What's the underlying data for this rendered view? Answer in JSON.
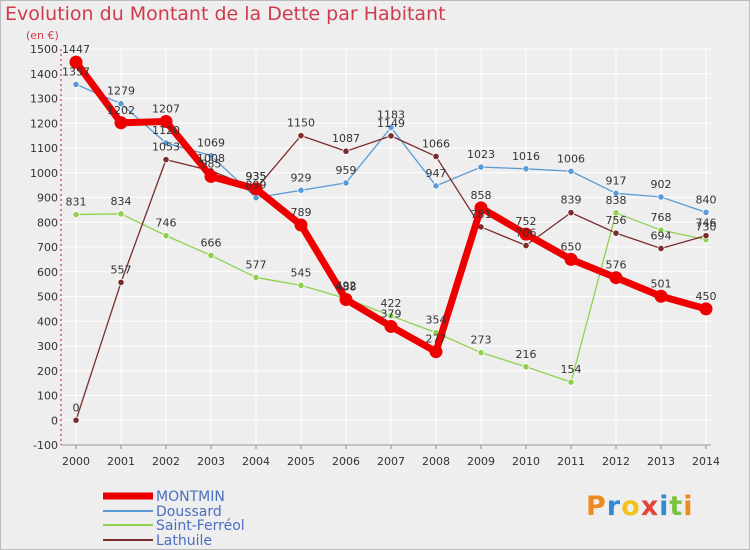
{
  "title": "Evolution du Montant de la Dette par Habitant",
  "subtitle": "(en €)",
  "logo": "Proxiti",
  "chart_data": {
    "type": "line",
    "title": "Evolution du Montant de la Dette par Habitant",
    "subtitle": "(en €)",
    "x": [
      2000,
      2001,
      2002,
      2003,
      2004,
      2005,
      2006,
      2007,
      2008,
      2009,
      2010,
      2011,
      2012,
      2013,
      2014
    ],
    "ylim": [
      -100,
      1500
    ],
    "yticks": [
      -100,
      0,
      100,
      200,
      300,
      400,
      500,
      600,
      700,
      800,
      900,
      1000,
      1100,
      1200,
      1300,
      1400,
      1500
    ],
    "grid": true,
    "legend_position": "bottom-left",
    "series": [
      {
        "name": "MONTMIN",
        "color": "#ee0000",
        "values": [
          1447,
          1202,
          1207,
          985,
          935,
          789,
          488,
          379,
          277,
          858,
          752,
          650,
          576,
          501,
          450
        ]
      },
      {
        "name": "Doussard",
        "color": "#5b9bd5",
        "values": [
          1357,
          1279,
          1120,
          1069,
          899,
          929,
          959,
          1183,
          947,
          1023,
          1016,
          1006,
          917,
          902,
          840
        ]
      },
      {
        "name": "Saint-Ferréol",
        "color": "#90d050",
        "values": [
          831,
          834,
          746,
          666,
          577,
          545,
          492,
          422,
          354,
          273,
          216,
          154,
          838,
          768,
          730
        ]
      },
      {
        "name": "Lathuile",
        "color": "#7b2c2c",
        "values": [
          0,
          557,
          1053,
          1008,
          935,
          1150,
          1087,
          1149,
          1066,
          781,
          706,
          839,
          756,
          694,
          746
        ]
      }
    ]
  }
}
